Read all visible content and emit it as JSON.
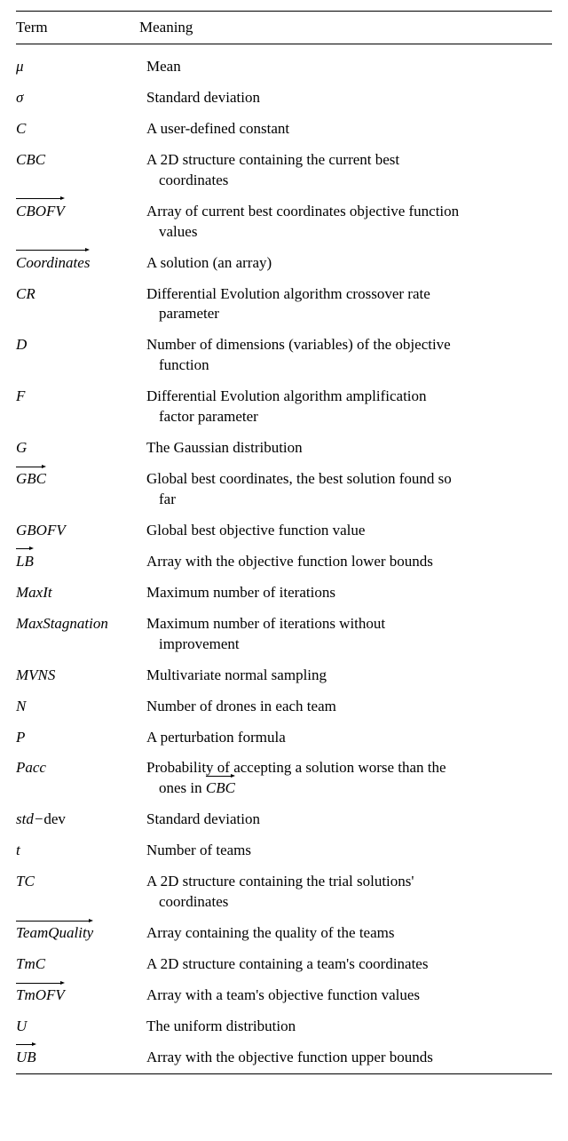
{
  "table": {
    "header": {
      "term": "Term",
      "meaning": "Meaning"
    },
    "rows": [
      {
        "term_html": "μ",
        "meaning_html": "Mean",
        "gap": true
      },
      {
        "term_html": "σ",
        "meaning_html": "Standard deviation"
      },
      {
        "term_html": "C",
        "meaning_html": "A user-defined constant"
      },
      {
        "term_html": "CBC",
        "meaning_html": "A 2D structure containing the current best<span class=\"cont\">coordinates</span>"
      },
      {
        "term_html": "<span class=\"vec\"><span class=\"arrow\"></span>CBOFV</span>",
        "meaning_html": "Array of current best coordinates objective function<span class=\"cont\">values</span>"
      },
      {
        "term_html": "<span class=\"vec\"><span class=\"arrow\"></span>Coordinates</span>",
        "meaning_html": "A solution (an array)"
      },
      {
        "term_html": "CR",
        "meaning_html": "Differential Evolution algorithm crossover rate<span class=\"cont\">parameter</span>"
      },
      {
        "term_html": "D",
        "meaning_html": "Number of dimensions (variables) of the objective<span class=\"cont\">function</span>"
      },
      {
        "term_html": "F",
        "meaning_html": "Differential Evolution algorithm amplification<span class=\"cont\">factor parameter</span>"
      },
      {
        "term_html": "G",
        "meaning_html": "The Gaussian distribution"
      },
      {
        "term_html": "<span class=\"vec\"><span class=\"arrow\"></span>GBC</span>",
        "meaning_html": "Global best coordinates, the best solution found so<span class=\"cont\">far</span>"
      },
      {
        "term_html": "GBOFV",
        "meaning_html": "Global best objective function value"
      },
      {
        "term_html": "<span class=\"vec\"><span class=\"arrow\"></span>LB</span>",
        "meaning_html": "Array with the objective function lower bounds"
      },
      {
        "term_html": "MaxIt",
        "meaning_html": "Maximum number of iterations"
      },
      {
        "term_html": "MaxStagnation",
        "meaning_html": "Maximum number of iterations without<span class=\"cont\">improvement</span>"
      },
      {
        "term_html": "MVNS",
        "meaning_html": "Multivariate normal sampling"
      },
      {
        "term_html": "N",
        "meaning_html": "Number of drones in each team"
      },
      {
        "term_html": "P",
        "meaning_html": "A perturbation formula"
      },
      {
        "term_html": "Pacc",
        "meaning_html": "Probability of accepting a solution worse than the<span class=\"cont\">ones in <span class=\"inline-vec\"><span class=\"vec\"><span class=\"arrow\"></span>CBC</span></span></span>"
      },
      {
        "term_html": "std−<span class=\"upright\">dev</span>",
        "meaning_html": "Standard deviation"
      },
      {
        "term_html": "t",
        "meaning_html": "Number of teams"
      },
      {
        "term_html": "TC",
        "meaning_html": "A 2D structure containing the trial solutions'<span class=\"cont\">coordinates</span>"
      },
      {
        "term_html": "<span class=\"vec\"><span class=\"arrow\"></span>TeamQuality</span>",
        "meaning_html": "Array containing the quality of the teams"
      },
      {
        "term_html": "TmC",
        "meaning_html": "A 2D structure containing a team's coordinates"
      },
      {
        "term_html": "<span class=\"vec\"><span class=\"arrow\"></span>TmOFV</span>",
        "meaning_html": "Array with a team's objective function values"
      },
      {
        "term_html": "U",
        "meaning_html": "The uniform distribution"
      },
      {
        "term_html": "<span class=\"vec\"><span class=\"arrow\"></span>UB</span>",
        "meaning_html": "Array with the objective function upper bounds"
      }
    ]
  }
}
